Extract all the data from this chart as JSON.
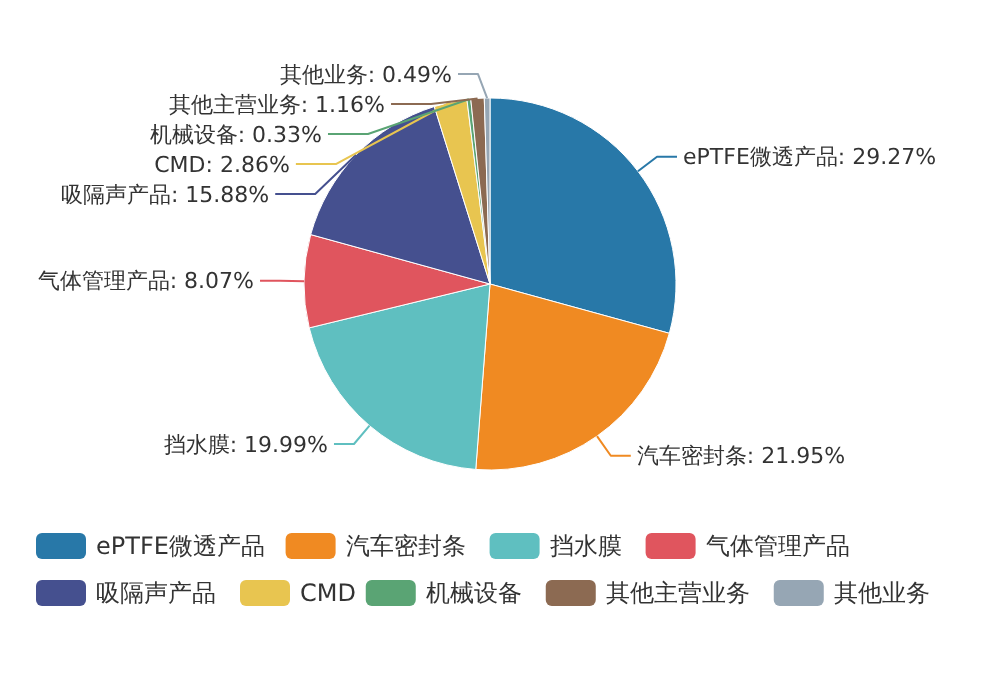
{
  "chart_data": {
    "type": "pie",
    "categories": [
      "ePTFE微透产品",
      "汽车密封条",
      "挡水膜",
      "气体管理产品",
      "吸隔声产品",
      "CMD",
      "机械设备",
      "其他主营业务",
      "其他业务"
    ],
    "values": [
      29.27,
      21.95,
      19.99,
      8.07,
      15.88,
      2.86,
      0.33,
      1.16,
      0.49
    ],
    "value_labels": [
      "ePTFE微透产品: 29.27%",
      "汽车密封条: 21.95%",
      "挡水膜: 19.99%",
      "气体管理产品: 8.07%",
      "吸隔声产品: 15.88%",
      "CMD: 2.86%",
      "机械设备: 0.33%",
      "其他主营业务: 1.16%",
      "其他业务: 0.49%"
    ],
    "colors": [
      "#2878a8",
      "#f08a22",
      "#5fbfc0",
      "#e0555e",
      "#45508f",
      "#e8c550",
      "#5aa474",
      "#8c6a52",
      "#96a6b4"
    ],
    "legend": "bottom"
  }
}
